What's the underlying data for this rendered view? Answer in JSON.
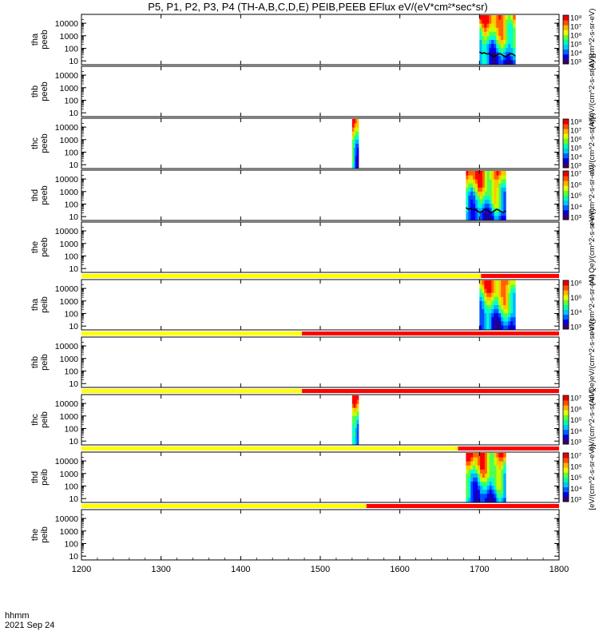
{
  "title": "P5, P1, P2, P3, P4 (TH-A,B,C,D,E) PEIB,PEEB EFlux eV/(eV*cm²*sec*sr)",
  "x_axis": {
    "prefix_line1": "hhmm",
    "prefix_line2": "2021 Sep 24",
    "tick_labels": [
      "1200",
      "1300",
      "1400",
      "1500",
      "1600",
      "1700",
      "1800"
    ]
  },
  "colors": {
    "flag_good": "#ffff00",
    "flag_bad": "#ff0000",
    "colorbar": [
      "#3c0064",
      "#0000e6",
      "#0064ff",
      "#00c8ff",
      "#00ffaa",
      "#64ff32",
      "#e6ff00",
      "#ffb400",
      "#ff5000",
      "#e60000"
    ]
  },
  "chart_data": {
    "type": "heatmap",
    "x_range": [
      "1200",
      "1800"
    ],
    "y_scale": "log",
    "y_ticks": [
      "10",
      "100",
      "1000",
      "10000"
    ],
    "panels": [
      {
        "id": "tha-peeb",
        "ylabel": [
          "tha",
          "peeb"
        ],
        "flag_split": null,
        "cbar_label": "(A)/(cm^2-s-sr-eV)",
        "cbar_ticks": [
          "10³",
          "10⁴",
          "10⁵",
          "10⁶",
          "10⁷",
          "10⁸"
        ],
        "bursts": [
          {
            "start": "1700",
            "end": "1745",
            "boundary": true
          }
        ]
      },
      {
        "id": "thb-peeb",
        "ylabel": [
          "thb",
          "peeb"
        ],
        "flag_split": null,
        "cbar_label": "(A)[eV/(cm^2-s-sr-eV)]",
        "cbar_ticks": [],
        "bursts": []
      },
      {
        "id": "thc-peeb",
        "ylabel": [
          "thc",
          "peeb"
        ],
        "flag_split": null,
        "cbar_label": "eV/(cm^2-s-sr-eV)",
        "cbar_ticks": [
          "10³",
          "10⁴",
          "10⁵",
          "10⁶",
          "10⁷",
          "10⁸"
        ],
        "bursts": [
          {
            "start": "1540",
            "end": "1548",
            "boundary": false
          }
        ]
      },
      {
        "id": "thd-peeb",
        "ylabel": [
          "thd",
          "peeb"
        ],
        "flag_split": null,
        "cbar_label": "eV/(cm^2-s-sr-eV)",
        "cbar_ticks": [
          "10³",
          "10⁴",
          "10⁵",
          "10⁶",
          "10⁷"
        ],
        "bursts": [
          {
            "start": "1683",
            "end": "1733",
            "boundary": true
          }
        ]
      },
      {
        "id": "the-peeb",
        "ylabel": [
          "the",
          "peeb"
        ],
        "flag_split": null,
        "cbar_label": "(All Qe)/(cm^2-s-sr-eV)",
        "cbar_ticks": [],
        "bursts": []
      },
      {
        "id": "tha-peib",
        "ylabel": [
          "tha",
          "peib"
        ],
        "flag_split": "1702",
        "cbar_label": "eV/(cm^2-s-sr-eV)",
        "cbar_ticks": [
          "10³",
          "10⁴",
          "10⁵",
          "10⁶"
        ],
        "bursts": [
          {
            "start": "1700",
            "end": "1745",
            "boundary": false
          }
        ]
      },
      {
        "id": "thb-peib",
        "ylabel": [
          "thb",
          "peib"
        ],
        "flag_split": "1477",
        "cbar_label": "(All Qe)eV/(cm^2-s-sr-eV)",
        "cbar_ticks": [],
        "bursts": []
      },
      {
        "id": "thc-peib",
        "ylabel": [
          "thc",
          "peib"
        ],
        "flag_split": "1477",
        "cbar_label": "eV/(cm^2-s-sr-eV)",
        "cbar_ticks": [
          "10³",
          "10⁴",
          "10⁵",
          "10⁶",
          "10⁷"
        ],
        "bursts": [
          {
            "start": "1540",
            "end": "1548",
            "boundary": false
          }
        ]
      },
      {
        "id": "thd-peib",
        "ylabel": [
          "thd",
          "peib"
        ],
        "flag_split": "1673",
        "cbar_label": "[eV/(cm^2-s-sr-eV)]",
        "cbar_ticks": [
          "10³",
          "10⁴",
          "10⁵",
          "10⁶",
          "10⁷"
        ],
        "bursts": [
          {
            "start": "1683",
            "end": "1733",
            "boundary": false
          }
        ]
      },
      {
        "id": "the-peib",
        "ylabel": [
          "the",
          "peib"
        ],
        "flag_split": "1558",
        "cbar_label": "",
        "cbar_ticks": [],
        "bursts": []
      }
    ]
  }
}
